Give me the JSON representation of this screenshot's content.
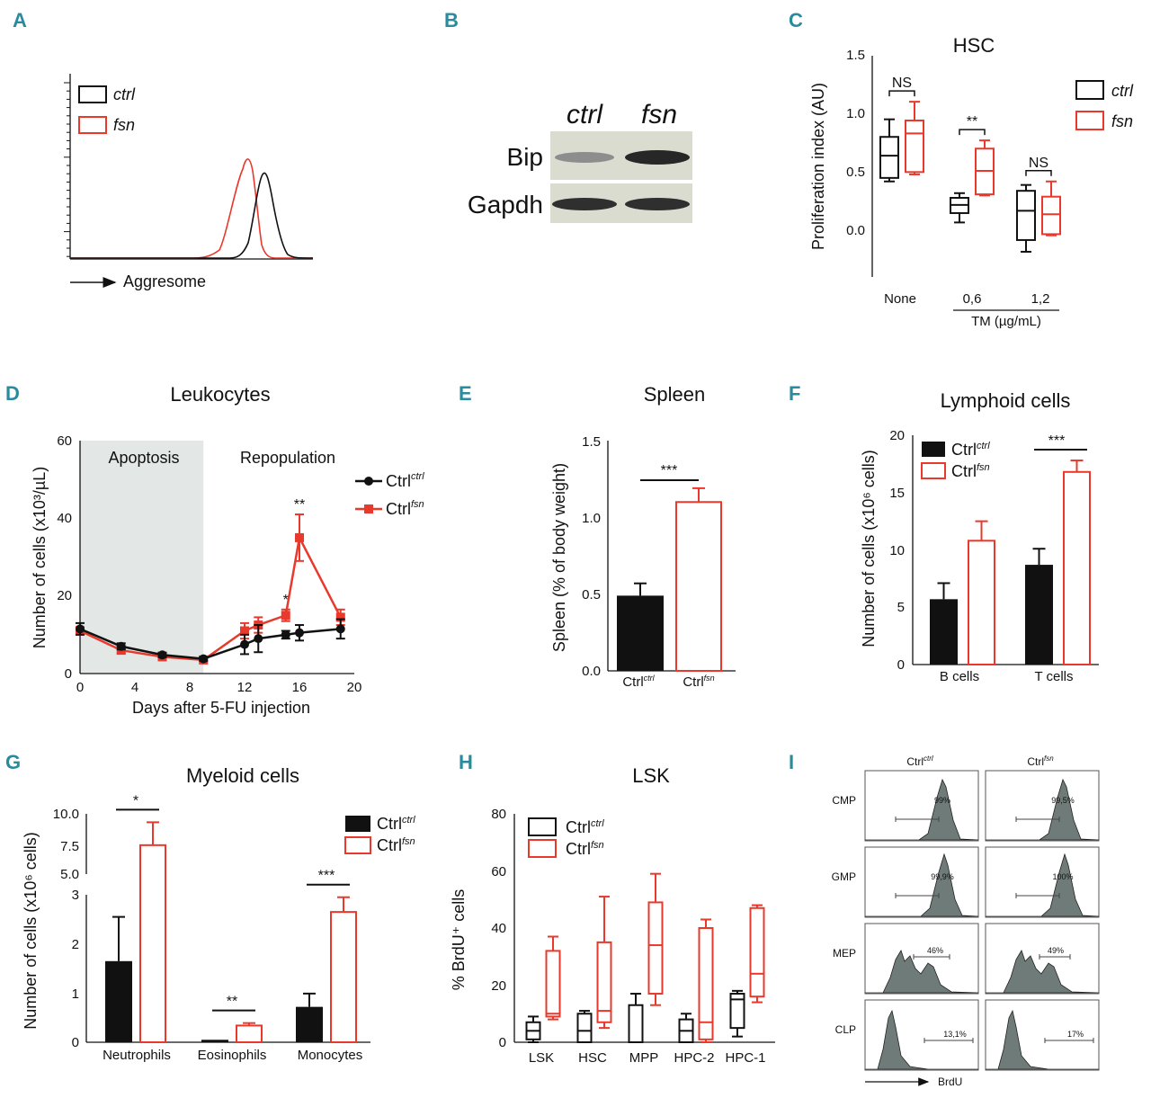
{
  "colors": {
    "ctrl": "#111111",
    "fsn": "#e8392c",
    "panel_label": "#2a8a9e",
    "apoptosis_shade": "#e3e8e6",
    "histogram_fill": "#6f7b78"
  },
  "panel_labels": [
    "A",
    "B",
    "C",
    "D",
    "E",
    "F",
    "G",
    "H",
    "I"
  ],
  "panelA": {
    "legend": [
      "ctrl",
      "fsn"
    ],
    "xlabel": "Aggresome"
  },
  "panelB": {
    "lanes": [
      "ctrl",
      "fsn"
    ],
    "rows": [
      "Bip",
      "Gapdh"
    ],
    "bip_intensity": [
      0.35,
      0.95
    ],
    "gapdh_intensity": [
      0.9,
      0.9
    ]
  },
  "chart_data": [
    {
      "id": "C",
      "type": "box",
      "title": "HSC",
      "ylabel": "Proliferation index (AU)",
      "ylim": [
        -0.4,
        1.5
      ],
      "yticks": [
        "1.5",
        "1.0",
        "0.5",
        "0.0"
      ],
      "categories": [
        "None",
        "0,6",
        "1,2"
      ],
      "xgroup_label": "TM (µg/mL)",
      "legend": [
        "ctrl",
        "fsn"
      ],
      "series": [
        {
          "name": "ctrl",
          "boxes": [
            [
              0.42,
              0.45,
              0.64,
              0.8,
              0.95
            ],
            [
              0.07,
              0.15,
              0.22,
              0.28,
              0.32
            ],
            [
              -0.18,
              -0.08,
              0.17,
              0.34,
              0.39
            ]
          ]
        },
        {
          "name": "fsn",
          "boxes": [
            [
              0.48,
              0.5,
              0.83,
              0.94,
              1.1
            ],
            [
              0.3,
              0.31,
              0.51,
              0.7,
              0.77
            ],
            [
              -0.04,
              -0.03,
              0.14,
              0.29,
              0.42
            ]
          ]
        }
      ],
      "significance": [
        "NS",
        "**",
        "NS"
      ]
    },
    {
      "id": "D",
      "type": "line",
      "title": "Leukocytes",
      "xlabel": "Days after 5-FU injection",
      "ylabel": "Number of cells (x10³/µL)",
      "xlim": [
        0,
        20
      ],
      "ylim": [
        0,
        60
      ],
      "xticks": [
        "0",
        "4",
        "8",
        "12",
        "16",
        "20"
      ],
      "yticks": [
        "60",
        "40",
        "20",
        "0"
      ],
      "shade_range": [
        0,
        9
      ],
      "shade_label": "Apoptosis",
      "right_label": "Repopulation",
      "series": [
        {
          "name": "Ctrl",
          "sup": "ctrl",
          "x": [
            0,
            3,
            6,
            9,
            12,
            13,
            15,
            16,
            19
          ],
          "y": [
            11.5,
            7,
            4.8,
            3.8,
            7.5,
            9,
            10,
            10.5,
            11.5
          ],
          "err": [
            1.5,
            0.8,
            0.6,
            0.5,
            2.5,
            3.5,
            1.0,
            2.0,
            2.5
          ]
        },
        {
          "name": "Ctrl",
          "sup": "fsn",
          "x": [
            0,
            3,
            6,
            9,
            12,
            13,
            15,
            16,
            19
          ],
          "y": [
            11,
            6,
            4.3,
            3.5,
            11,
            12.5,
            15,
            35,
            14.5
          ],
          "err": [
            1.0,
            0.8,
            0.6,
            0.5,
            2.0,
            2.0,
            1.5,
            6.0,
            2.0
          ]
        }
      ],
      "annotations": [
        {
          "x": 15,
          "text": "*"
        },
        {
          "x": 16,
          "text": "**"
        }
      ]
    },
    {
      "id": "E",
      "type": "bar",
      "title": "Spleen",
      "ylabel": "Spleen (% of body weight)",
      "ylim": [
        0,
        1.5
      ],
      "yticks": [
        "1.5",
        "1.0",
        "0.5",
        "0.0"
      ],
      "categories": [
        "Ctrl",
        "Ctrl"
      ],
      "sups": [
        "ctrl",
        "fsn"
      ],
      "values": [
        0.49,
        1.1
      ],
      "errors": [
        0.08,
        0.09
      ],
      "significance": "***"
    },
    {
      "id": "F",
      "type": "bar",
      "title": "Lymphoid cells",
      "ylabel": "Number of cells (x10⁶ cells)",
      "ylim": [
        0,
        20
      ],
      "yticks": [
        "20",
        "15",
        "10",
        "5",
        "0"
      ],
      "categories": [
        "B cells",
        "T cells"
      ],
      "legend": [
        {
          "name": "Ctrl",
          "sup": "ctrl"
        },
        {
          "name": "Ctrl",
          "sup": "fsn"
        }
      ],
      "series": [
        {
          "name": "ctrl",
          "values": [
            5.7,
            8.7
          ],
          "errors": [
            1.4,
            1.4
          ]
        },
        {
          "name": "fsn",
          "values": [
            10.8,
            16.8
          ],
          "errors": [
            1.7,
            1.0
          ]
        }
      ],
      "significance": [
        "",
        "***"
      ]
    },
    {
      "id": "G",
      "type": "bar",
      "title": "Myeloid cells",
      "ylabel": "Number of cells (x10⁶ cells)",
      "ylim_lower": [
        0,
        3
      ],
      "ylim_upper": [
        5.0,
        10.0
      ],
      "yticks_lower": [
        "3",
        "2",
        "1",
        "0"
      ],
      "yticks_upper": [
        "10.0",
        "7.5",
        "5.0"
      ],
      "categories": [
        "Neutrophils",
        "Eosinophils",
        "Monocytes"
      ],
      "legend": [
        {
          "name": "Ctrl",
          "sup": "ctrl"
        },
        {
          "name": "Ctrl",
          "sup": "fsn"
        }
      ],
      "series": [
        {
          "name": "ctrl",
          "values": [
            1.65,
            0.05,
            0.72
          ],
          "errors": [
            0.9,
            0.0,
            0.27
          ]
        },
        {
          "name": "fsn",
          "values": [
            7.4,
            0.34,
            2.65
          ],
          "errors": [
            1.9,
            0.05,
            0.3
          ]
        }
      ],
      "significance": [
        "*",
        "**",
        "***"
      ]
    },
    {
      "id": "H",
      "type": "box",
      "title": "LSK",
      "ylabel": "% BrdU⁺ cells",
      "ylim": [
        0,
        80
      ],
      "yticks": [
        "80",
        "60",
        "40",
        "20",
        "0"
      ],
      "categories": [
        "LSK",
        "HSC",
        "MPP",
        "HPC-2",
        "HPC-1"
      ],
      "legend": [
        {
          "name": "Ctrl",
          "sup": "ctrl"
        },
        {
          "name": "Ctrl",
          "sup": "fsn"
        }
      ],
      "series": [
        {
          "name": "ctrl",
          "boxes": [
            [
              0,
              1,
              4,
              7,
              9
            ],
            [
              0,
              0,
              4,
              10,
              11
            ],
            [
              0,
              0,
              0,
              13,
              17
            ],
            [
              0,
              0,
              4,
              8,
              10
            ],
            [
              2,
              5,
              15,
              17,
              18
            ]
          ]
        },
        {
          "name": "fsn",
          "boxes": [
            [
              8,
              9,
              10,
              32,
              37
            ],
            [
              5,
              7,
              11,
              35,
              51
            ],
            [
              13,
              17,
              34,
              49,
              59
            ],
            [
              0,
              1,
              7,
              40,
              43
            ],
            [
              14,
              16,
              24,
              47,
              48
            ]
          ]
        }
      ]
    }
  ],
  "panelI": {
    "columns": [
      {
        "name": "Ctrl",
        "sup": "ctrl"
      },
      {
        "name": "Ctrl",
        "sup": "fsn"
      }
    ],
    "rows": [
      "CMP",
      "GMP",
      "MEP",
      "CLP"
    ],
    "percents": [
      [
        "99%",
        "99,5%"
      ],
      [
        "99,9%",
        "100%"
      ],
      [
        "46%",
        "49%"
      ],
      [
        "13,1%",
        "17%"
      ]
    ],
    "xlabel": "BrdU"
  }
}
